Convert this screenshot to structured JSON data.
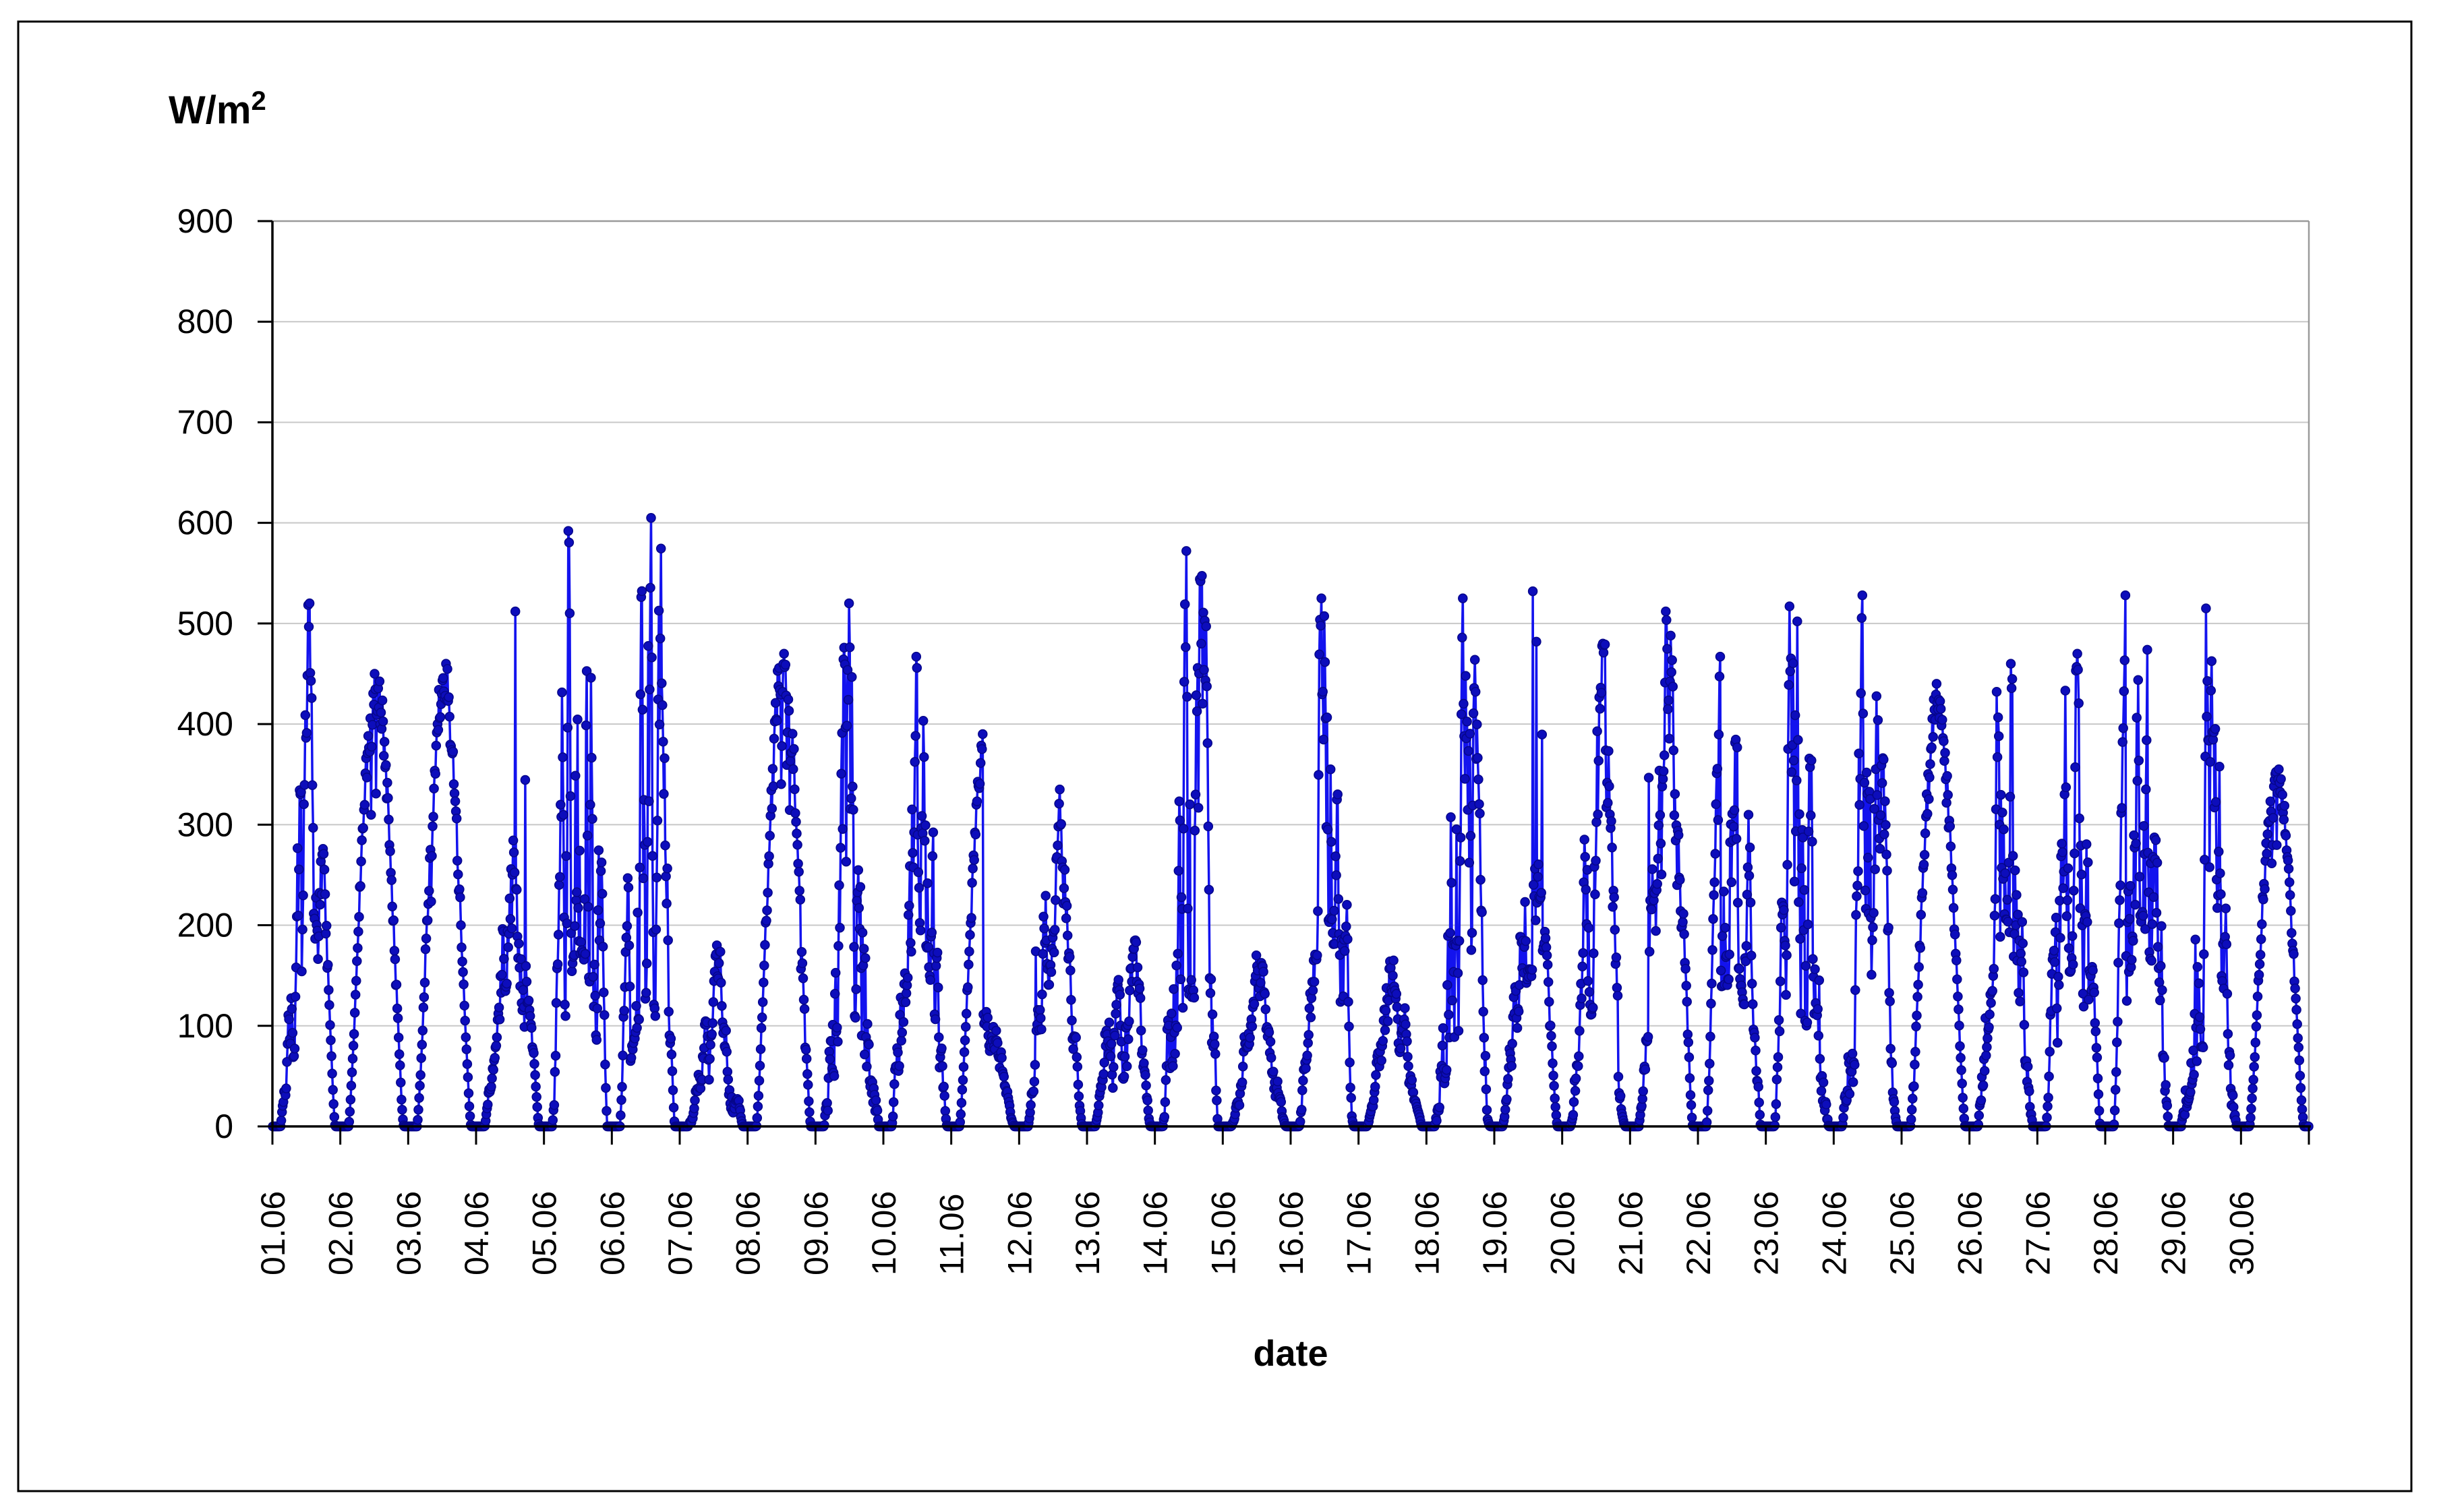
{
  "chart_data": {
    "type": "scatter",
    "title": "",
    "ylabel": "W/m²",
    "ylabel_base": "W/m",
    "ylabel_sup": "2",
    "xlabel": "date",
    "ylim": [
      0,
      900
    ],
    "yticks": [
      0,
      100,
      200,
      300,
      400,
      500,
      600,
      700,
      800,
      900
    ],
    "grid": "horizontal",
    "legend": "none",
    "sample_interval_minutes": 15,
    "daylight_frac": [
      0.125,
      0.93
    ],
    "colors": {
      "line": "#1313ee",
      "marker_fill": "#0d0dbb",
      "marker_edge": "#06068a",
      "gridline": "#c8c8c8",
      "plot_border": "#9a9a9a",
      "axis": "#000000",
      "text": "#000000",
      "frame": "#000000",
      "background": "#ffffff"
    },
    "days": [
      {
        "date": "01.06",
        "peak": 520,
        "sky": "partly"
      },
      {
        "date": "02.06",
        "peak": 450,
        "sky": "clear"
      },
      {
        "date": "03.06",
        "peak": 460,
        "sky": "clear"
      },
      {
        "date": "04.06",
        "peak": 512,
        "sky": "spike"
      },
      {
        "date": "05.06",
        "peak": 592,
        "sky": "spiky"
      },
      {
        "date": "06.06",
        "peak": 605,
        "sky": "spiky"
      },
      {
        "date": "07.06",
        "peak": 180,
        "sky": "cloudy"
      },
      {
        "date": "08.06",
        "peak": 470,
        "sky": "clear"
      },
      {
        "date": "09.06",
        "peak": 520,
        "sky": "spiky"
      },
      {
        "date": "10.06",
        "peak": 467,
        "sky": "partly"
      },
      {
        "date": "11.06",
        "peak": 390,
        "sky": "am"
      },
      {
        "date": "12.06",
        "peak": 335,
        "sky": "spike"
      },
      {
        "date": "13.06",
        "peak": 185,
        "sky": "cloudy"
      },
      {
        "date": "14.06",
        "peak": 572,
        "sky": "spiky"
      },
      {
        "date": "15.06",
        "peak": 170,
        "sky": "cloudy"
      },
      {
        "date": "16.06",
        "peak": 525,
        "sky": "partly"
      },
      {
        "date": "17.06",
        "peak": 165,
        "sky": "cloudy"
      },
      {
        "date": "18.06",
        "peak": 525,
        "sky": "spiky"
      },
      {
        "date": "19.06",
        "peak": 532,
        "sky": "spike"
      },
      {
        "date": "20.06",
        "peak": 480,
        "sky": "partly"
      },
      {
        "date": "21.06",
        "peak": 512,
        "sky": "spike"
      },
      {
        "date": "22.06",
        "peak": 467,
        "sky": "partly"
      },
      {
        "date": "23.06",
        "peak": 517,
        "sky": "spiky"
      },
      {
        "date": "24.06",
        "peak": 528,
        "sky": "spiky"
      },
      {
        "date": "25.06",
        "peak": 440,
        "sky": "clear"
      },
      {
        "date": "26.06",
        "peak": 460,
        "sky": "partly"
      },
      {
        "date": "27.06",
        "peak": 470,
        "sky": "partly"
      },
      {
        "date": "28.06",
        "peak": 528,
        "sky": "partly"
      },
      {
        "date": "29.06",
        "peak": 515,
        "sky": "spiky"
      },
      {
        "date": "30.06",
        "peak": 355,
        "sky": "clear"
      }
    ]
  }
}
